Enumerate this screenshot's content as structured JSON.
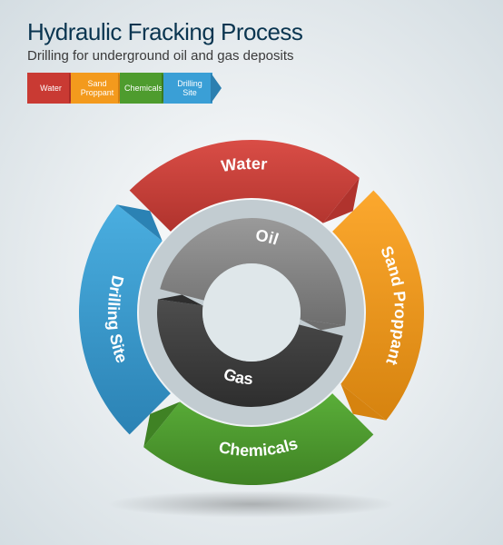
{
  "header": {
    "title": "Hydraulic Fracking Process",
    "subtitle": "Drilling for underground oil and gas deposits",
    "title_color": "#0a3550",
    "subtitle_color": "#3a3a3a"
  },
  "legend": {
    "items": [
      {
        "label": "Water",
        "bg": "#c93a33",
        "arrow": "#a92c27"
      },
      {
        "label": "Sand Proppant",
        "bg": "#f39a1d",
        "arrow": "#d47f12"
      },
      {
        "label": "Chemicals",
        "bg": "#4e9c2e",
        "arrow": "#3b7a20"
      },
      {
        "label": "Drilling Site",
        "bg": "#3a9fd6",
        "arrow": "#2b7fb0"
      }
    ]
  },
  "outer_ring": {
    "type": "donut-cycle",
    "r_outer": 190,
    "r_inner": 126,
    "segments": [
      {
        "label": "Water",
        "color_light": "#d94d46",
        "color_dark": "#b0332d"
      },
      {
        "label": "Sand Proppant",
        "color_light": "#fca82e",
        "color_dark": "#d6830f"
      },
      {
        "label": "Chemicals",
        "color_light": "#5aae39",
        "color_dark": "#3f8224"
      },
      {
        "label": "Drilling Site",
        "color_light": "#4aaee0",
        "color_dark": "#2b82b4"
      }
    ],
    "label_fontsize": 18
  },
  "inner_ring": {
    "type": "donut-cycle",
    "r_outer": 104,
    "r_inner": 54,
    "segments": [
      {
        "label": "Oil",
        "color_light": "#9a9a9a",
        "color_dark": "#6e6e6e"
      },
      {
        "label": "Gas",
        "color_light": "#4d4d4d",
        "color_dark": "#2e2e2e"
      }
    ],
    "label_fontsize": 18
  },
  "gap_ring_color": "#c2ccd1",
  "center_hole_color": "#dfe7ea"
}
